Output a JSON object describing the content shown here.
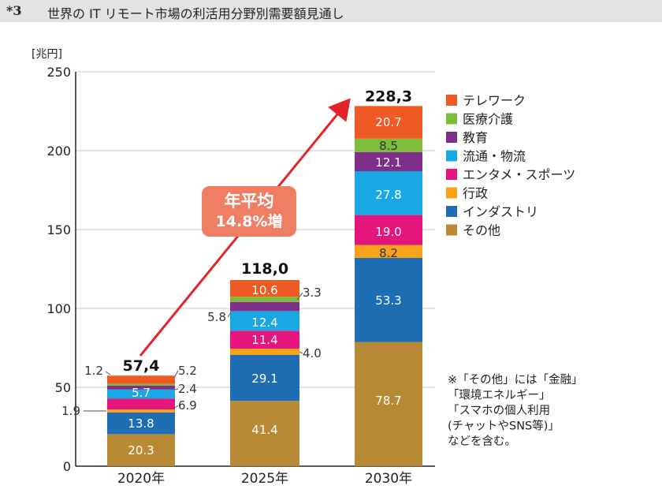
{
  "header": {
    "number": "*3",
    "title": "世界の IT リモート市場の利活用分野別需要額見通し"
  },
  "chart_data": {
    "type": "bar",
    "stacked": true,
    "unit_label": "[兆円]",
    "ylim": [
      0,
      250
    ],
    "yticks": [
      0,
      50,
      100,
      150,
      200,
      250
    ],
    "grid": true,
    "legend_position": "right",
    "categories": [
      "2020年",
      "2025年",
      "2030年"
    ],
    "series": [
      {
        "name": "その他",
        "color": "#b98a36",
        "values": [
          20.3,
          41.4,
          78.7
        ]
      },
      {
        "name": "インダストリ",
        "color": "#1f6eb3",
        "values": [
          13.8,
          29.1,
          53.3
        ]
      },
      {
        "name": "行政",
        "color": "#f6a31b",
        "values": [
          1.9,
          4.0,
          8.2
        ]
      },
      {
        "name": "エンタメ・スポーツ",
        "color": "#e5157e",
        "values": [
          6.9,
          11.4,
          19.0
        ]
      },
      {
        "name": "流通・物流",
        "color": "#1aa8e5",
        "values": [
          5.7,
          12.4,
          27.8
        ]
      },
      {
        "name": "教育",
        "color": "#7d2f8b",
        "values": [
          2.4,
          5.8,
          12.1
        ]
      },
      {
        "name": "医療介護",
        "color": "#7cbd3c",
        "values": [
          1.2,
          3.3,
          8.5
        ]
      },
      {
        "name": "テレワーク",
        "color": "#ee5a24",
        "values": [
          5.2,
          10.6,
          20.7
        ]
      }
    ],
    "labels": [
      [
        "20.3",
        "13.8",
        "1.9",
        "6.9",
        "5.7",
        "2.4",
        "1.2",
        "5.2"
      ],
      [
        "41.4",
        "29.1",
        "4.0",
        "11.4",
        "12.4",
        "5.8",
        "3.3",
        "10.6"
      ],
      [
        "78.7",
        "53.3",
        "8.2",
        "19.0",
        "27.8",
        "12.1",
        "8.5",
        "20.7"
      ]
    ],
    "totals": [
      "57,4",
      "118,0",
      "228,3"
    ],
    "growth_callout": [
      "年平均",
      "14.8%増"
    ],
    "note": [
      "※「その他」には「金融」",
      "「環境エネルギー」",
      "「スマホの個人利用",
      "(チャットやSNS等)」",
      "などを含む。"
    ]
  }
}
